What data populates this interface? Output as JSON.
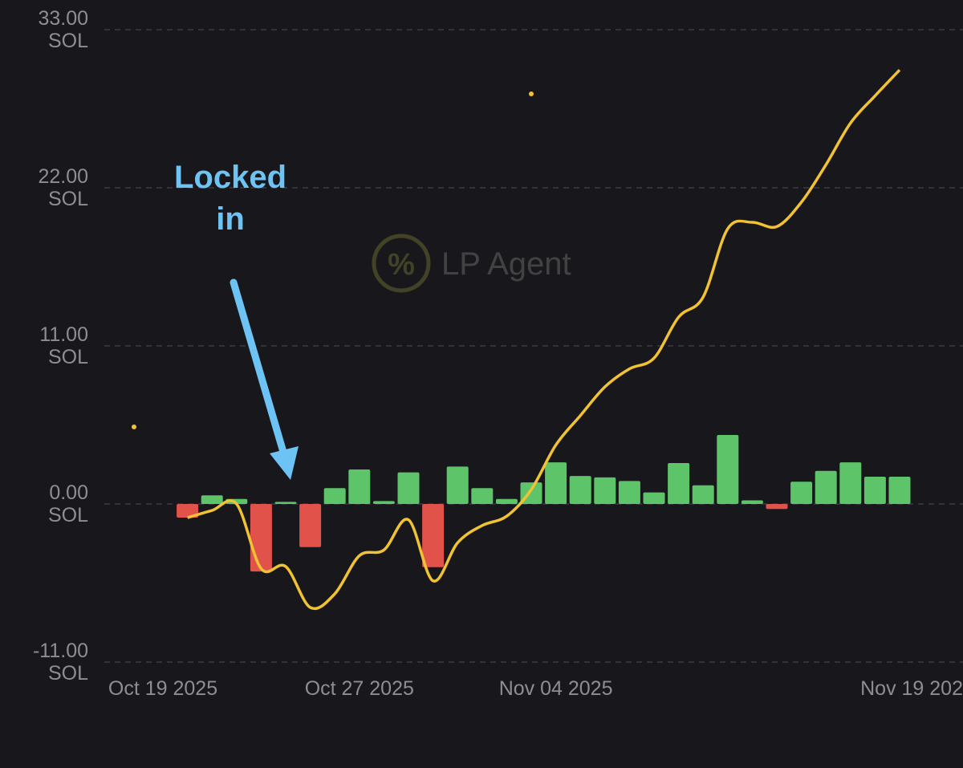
{
  "chart_data": {
    "type": "bar-line",
    "annotation": "Locked in",
    "watermark": "LP Agent",
    "y_unit": "SOL",
    "ylim": [
      -11,
      33
    ],
    "yticks": [
      {
        "value": 33,
        "label": "33.00"
      },
      {
        "value": 22,
        "label": "22.00"
      },
      {
        "value": 11,
        "label": "11.00"
      },
      {
        "value": 0,
        "label": "0.00"
      },
      {
        "value": -11,
        "label": "-11.00"
      }
    ],
    "grid": true,
    "xlim": [
      0,
      30
    ],
    "xticks": [
      {
        "value": 0,
        "label": "Oct 19 2025"
      },
      {
        "value": 8,
        "label": "Oct 27 2025"
      },
      {
        "value": 16,
        "label": "Nov 04 2025"
      },
      {
        "value": 30,
        "label": "Nov 19 202"
      }
    ],
    "x": [
      1,
      2,
      3,
      4,
      5,
      6,
      7,
      8,
      9,
      10,
      11,
      12,
      13,
      14,
      15,
      16,
      17,
      18,
      19,
      20,
      21,
      22,
      23,
      24,
      25,
      26,
      27,
      28,
      29,
      30
    ],
    "series": [
      {
        "kind": "bar",
        "positive_color": "#5ec46a",
        "negative_color": "#e0524a",
        "values": [
          -0.95,
          0.6,
          0.35,
          -4.7,
          0.15,
          -3.0,
          1.1,
          2.4,
          0.2,
          2.2,
          -4.4,
          2.6,
          1.1,
          0.35,
          1.5,
          2.9,
          1.95,
          1.85,
          1.6,
          0.8,
          2.85,
          1.3,
          4.8,
          0.25,
          -0.35,
          1.55,
          2.3,
          2.9,
          1.9,
          1.9
        ]
      },
      {
        "kind": "line",
        "color": "#f1c232",
        "values": [
          -0.95,
          -0.45,
          0,
          -4.5,
          -4.35,
          -7.2,
          -6.25,
          -3.6,
          -3.2,
          -1.1,
          -5.35,
          -2.7,
          -1.5,
          -0.85,
          1.0,
          4.1,
          6.15,
          8.15,
          9.4,
          10.15,
          13.0,
          14.4,
          19.15,
          19.6,
          19.3,
          21.0,
          23.6,
          26.5,
          28.4,
          30.2
        ]
      }
    ]
  }
}
